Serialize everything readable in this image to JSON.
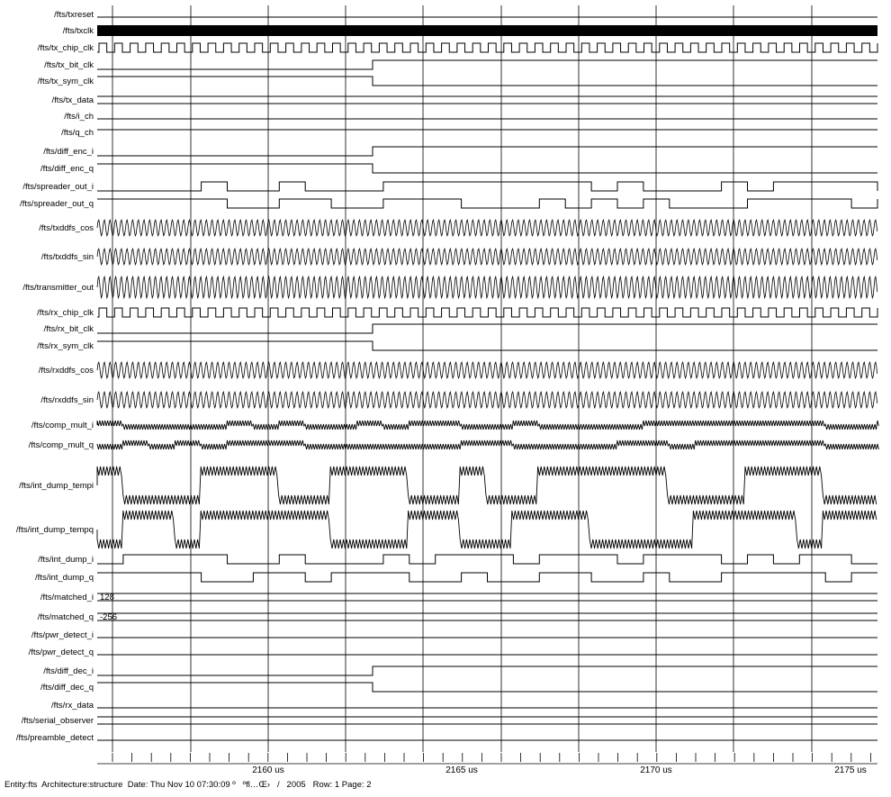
{
  "signals": [
    {
      "name": "/fts/txreset",
      "type": "low"
    },
    {
      "name": "/fts/txclk",
      "type": "bar"
    },
    {
      "name": "/fts/tx_chip_clk",
      "type": "clock"
    },
    {
      "name": "/fts/tx_bit_clk",
      "type": "step_up"
    },
    {
      "name": "/fts/tx_sym_clk",
      "type": "step_down"
    },
    {
      "name": "/fts/tx_data",
      "type": "bus"
    },
    {
      "name": "/fts/i_ch",
      "type": "low"
    },
    {
      "name": "/fts/q_ch",
      "type": "high"
    },
    {
      "name": "/fts/diff_enc_i",
      "type": "step_up"
    },
    {
      "name": "/fts/diff_enc_q",
      "type": "step_down"
    },
    {
      "name": "/fts/spreader_out_i",
      "type": "pn_i"
    },
    {
      "name": "/fts/spreader_out_q",
      "type": "pn_q"
    },
    {
      "name": "/fts/txddfs_cos",
      "type": "sine"
    },
    {
      "name": "/fts/txddfs_sin",
      "type": "sine"
    },
    {
      "name": "/fts/transmitter_out",
      "type": "sine_big"
    },
    {
      "name": "/fts/rx_chip_clk",
      "type": "clock"
    },
    {
      "name": "/fts/rx_bit_clk",
      "type": "step_up"
    },
    {
      "name": "/fts/rx_sym_clk",
      "type": "step_down"
    },
    {
      "name": "/fts/rxddfs_cos",
      "type": "sine"
    },
    {
      "name": "/fts/rxddfs_sin",
      "type": "sine"
    },
    {
      "name": "/fts/comp_mult_i",
      "type": "mult"
    },
    {
      "name": "/fts/comp_mult_q",
      "type": "mult"
    },
    {
      "name": "/fts/int_dump_tempi",
      "type": "ramp_i"
    },
    {
      "name": "/fts/int_dump_tempq",
      "type": "ramp_q"
    },
    {
      "name": "/fts/int_dump_i",
      "type": "pn_i"
    },
    {
      "name": "/fts/int_dump_q",
      "type": "pn_q"
    },
    {
      "name": "/fts/matched_i",
      "type": "value",
      "value": "128"
    },
    {
      "name": "/fts/matched_q",
      "type": "value",
      "value": "-256"
    },
    {
      "name": "/fts/pwr_detect_i",
      "type": "low"
    },
    {
      "name": "/fts/pwr_detect_q",
      "type": "low"
    },
    {
      "name": "/fts/diff_dec_i",
      "type": "step_up"
    },
    {
      "name": "/fts/diff_dec_q",
      "type": "step_down"
    },
    {
      "name": "/fts/rx_data",
      "type": "low"
    },
    {
      "name": "/fts/serial_observer",
      "type": "bus"
    },
    {
      "name": "/fts/preamble_detect",
      "type": "low"
    }
  ],
  "time_axis": {
    "unit": "us",
    "labels": [
      "2160 us",
      "2165 us",
      "2170 us",
      "2175 us"
    ]
  },
  "footer": "Entity:fts  Architecture:structure  Date: Thu Nov 10 07:30:09 º   ºfl…Œ›   /   2005   Row: 1 Page: 2"
}
